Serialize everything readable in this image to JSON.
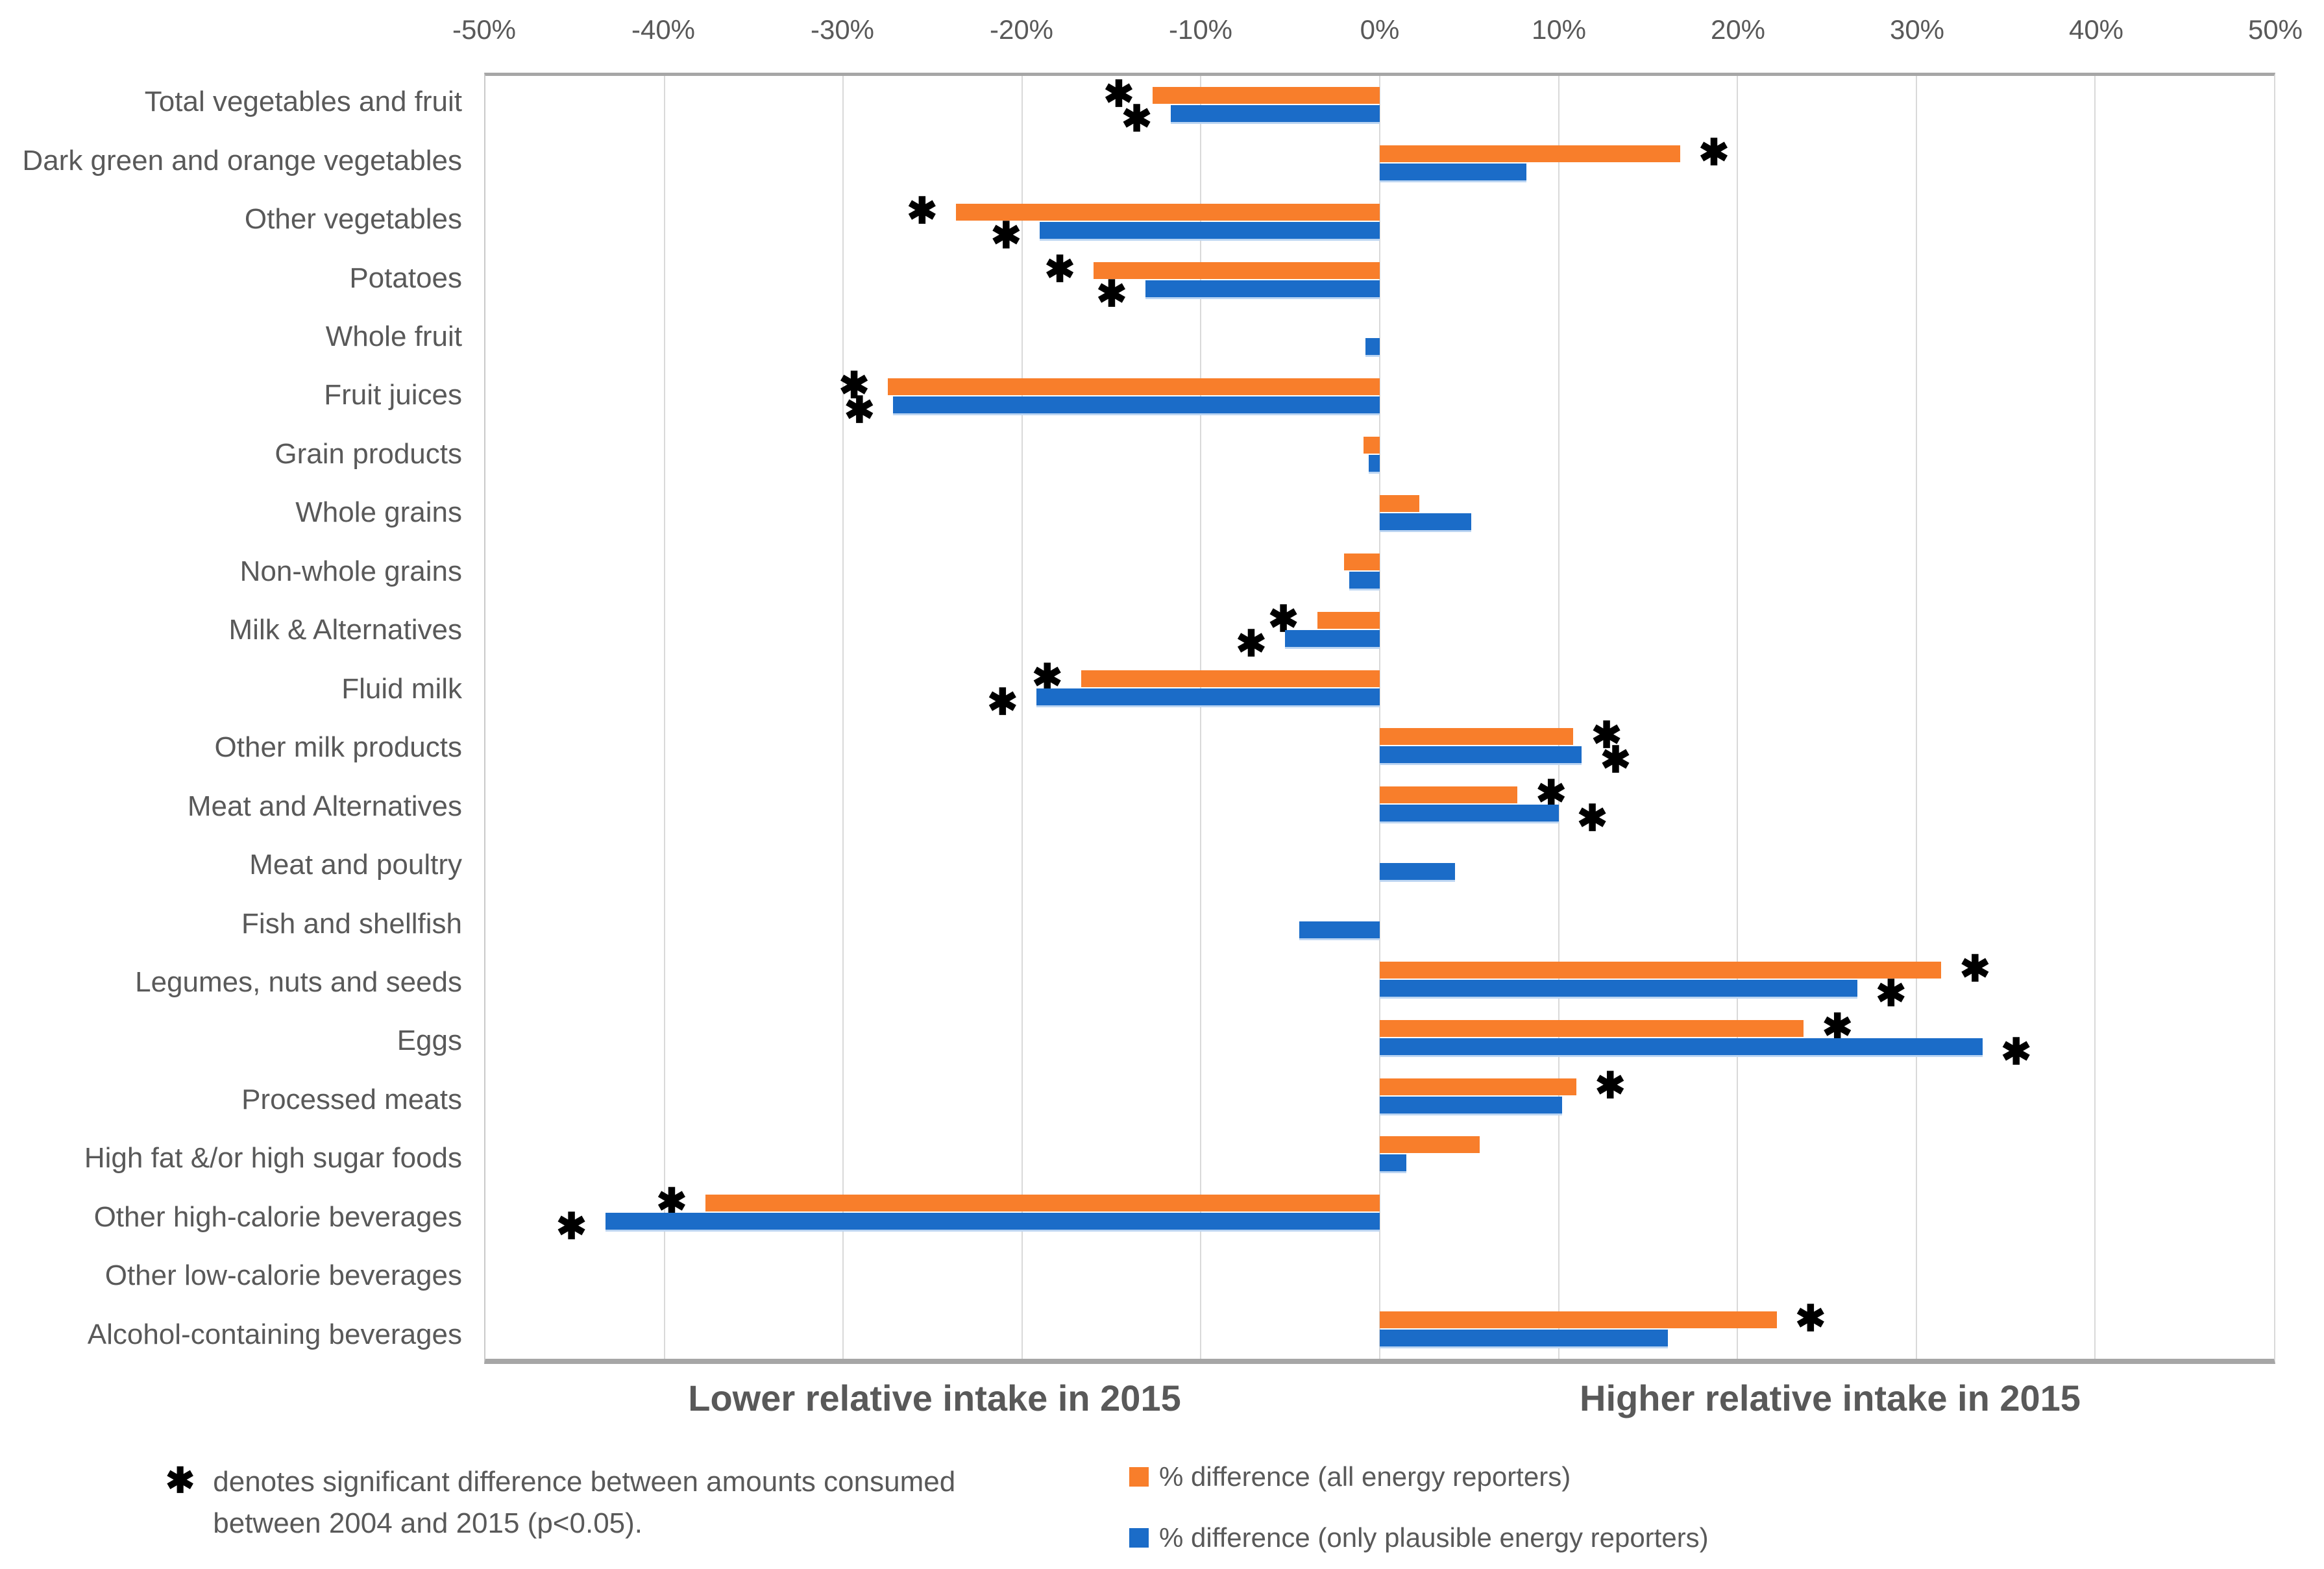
{
  "chart_data": {
    "type": "bar",
    "orientation": "horizontal",
    "title": "",
    "xlim": [
      -50,
      50
    ],
    "x_tick_labels": [
      "-50%",
      "-40%",
      "-30%",
      "-20%",
      "-10%",
      "0%",
      "10%",
      "20%",
      "30%",
      "40%",
      "50%"
    ],
    "gridlines": "vertical every 10%",
    "legend_position": "bottom-right",
    "significance_marker": "✱",
    "categories": [
      "Total vegetables and fruit",
      "Dark green and orange vegetables",
      "Other vegetables",
      "Potatoes",
      "Whole fruit",
      "Fruit juices",
      "Grain products",
      "Whole grains",
      "Non-whole grains",
      "Milk & Alternatives",
      "Fluid milk",
      "Other milk products",
      "Meat and Alternatives",
      "Meat and poultry",
      "Fish and shellfish",
      "Legumes, nuts and seeds",
      "Eggs",
      "Processed meats",
      "High fat &/or high sugar foods",
      "Other high-calorie beverages",
      "Other low-calorie beverages",
      "Alcohol-containing beverages"
    ],
    "series": [
      {
        "name": "% difference (all energy reporters)",
        "color": "#f87e2b",
        "values": [
          -12.7,
          16.8,
          -23.7,
          -16,
          0,
          -27.5,
          -0.9,
          2.2,
          -2,
          -3.5,
          -16.7,
          10.8,
          7.7,
          0,
          0,
          31.4,
          23.7,
          11,
          5.6,
          -37.7,
          0,
          22.2
        ],
        "significant": [
          true,
          true,
          true,
          true,
          false,
          true,
          false,
          false,
          false,
          true,
          true,
          true,
          true,
          false,
          false,
          true,
          true,
          true,
          false,
          true,
          false,
          true
        ]
      },
      {
        "name": "% difference (only plausible energy reporters)",
        "color": "#1b6cc8",
        "values": [
          -11.7,
          8.2,
          -19,
          -13.1,
          -0.8,
          -27.2,
          -0.6,
          5.1,
          -1.7,
          -5.3,
          -19.2,
          11.3,
          10,
          4.2,
          -4.5,
          26.7,
          33.7,
          10.2,
          1.5,
          -43.3,
          0,
          16.1
        ],
        "significant": [
          true,
          false,
          true,
          true,
          false,
          true,
          false,
          false,
          false,
          true,
          true,
          true,
          true,
          false,
          false,
          true,
          true,
          false,
          false,
          true,
          false,
          false
        ]
      }
    ]
  },
  "axis_annotations": {
    "left": "Lower relative intake in 2015",
    "right": "Higher relative intake in 2015"
  },
  "footnote": {
    "marker": "✱",
    "line1": "denotes significant difference between amounts consumed",
    "line2": "between 2004 and 2015 (p<0.05)."
  },
  "legend": [
    {
      "label": "% difference (all energy reporters)",
      "color": "#f87e2b"
    },
    {
      "label": "% difference (only plausible energy reporters)",
      "color": "#1b6cc8"
    }
  ]
}
